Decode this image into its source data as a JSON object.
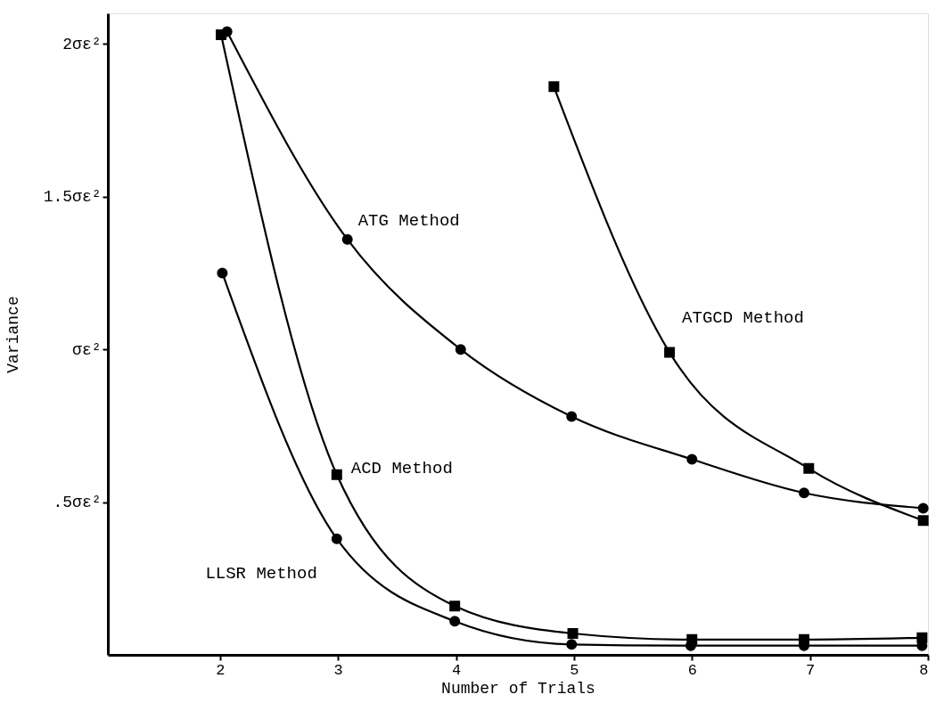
{
  "chart_data": {
    "type": "line",
    "xlabel": "Number of Trials",
    "ylabel": "Variance",
    "xlim": [
      1.05,
      8
    ],
    "xticks": [
      2,
      3,
      4,
      5,
      6,
      7,
      8
    ],
    "ylim": [
      0,
      2.1
    ],
    "yticks": [
      {
        "value": 0.5,
        "label": ".5σε²"
      },
      {
        "value": 1,
        "label": "σε²"
      },
      {
        "value": 1.5,
        "label": "1.5σε²"
      },
      {
        "value": 2,
        "label": "2σε²"
      }
    ],
    "grid": false,
    "line_style": "solid",
    "series": [
      {
        "name": "ATG Method",
        "color": "#000000",
        "marker": "circle",
        "x": [
          2.06,
          3.08,
          4.04,
          4.98,
          6.0,
          6.95,
          7.96
        ],
        "values": [
          2.04,
          1.36,
          1.0,
          0.78,
          0.64,
          0.53,
          0.48
        ]
      },
      {
        "name": "ATGCD Method",
        "color": "#000000",
        "marker": "square",
        "x": [
          4.83,
          5.81,
          6.99,
          7.96
        ],
        "values": [
          1.86,
          0.99,
          0.61,
          0.44
        ]
      },
      {
        "name": "ACD Method",
        "color": "#000000",
        "marker": "square",
        "x": [
          2.01,
          2.99,
          3.99,
          4.99,
          6.0,
          6.95,
          7.95
        ],
        "values": [
          2.03,
          0.59,
          0.16,
          0.07,
          0.05,
          0.05,
          0.056
        ]
      },
      {
        "name": "LLSR Method",
        "color": "#000000",
        "marker": "circle",
        "x": [
          2.02,
          2.99,
          3.99,
          4.98,
          5.99,
          6.95,
          7.95
        ],
        "values": [
          1.25,
          0.38,
          0.11,
          0.034,
          0.03,
          0.03,
          0.03
        ]
      }
    ]
  }
}
